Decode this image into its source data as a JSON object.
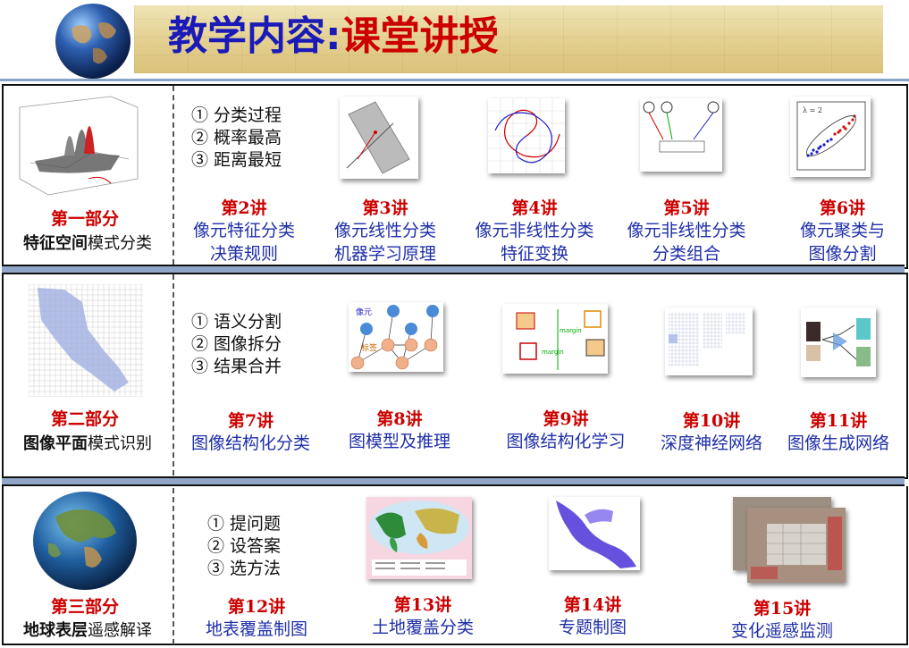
{
  "header": {
    "title_part1": "教学内容:",
    "title_part2": "课堂讲授"
  },
  "sections": [
    {
      "part": "第一部分",
      "sub_bold": "特征空间",
      "sub_rest": "模式分类",
      "points": [
        "① 分类过程",
        "② 概率最高",
        "③ 距离最短"
      ],
      "lectures": [
        {
          "num": "第2讲",
          "lines": [
            "像元特征分类",
            "决策规则"
          ]
        },
        {
          "num": "第3讲",
          "lines": [
            "像元线性分类",
            "机器学习原理"
          ]
        },
        {
          "num": "第4讲",
          "lines": [
            "像元非线性分类",
            "特征变换"
          ]
        },
        {
          "num": "第5讲",
          "lines": [
            "像元非线性分类",
            "分类组合"
          ]
        },
        {
          "num": "第6讲",
          "lines": [
            "像元聚类与",
            "图像分割"
          ]
        }
      ]
    },
    {
      "part": "第二部分",
      "sub_bold": "图像平面",
      "sub_rest": "模式识别",
      "points": [
        "① 语义分割",
        "② 图像拆分",
        "③ 结果合并"
      ],
      "lectures": [
        {
          "num": "第7讲",
          "lines": [
            "图像结构化分类"
          ]
        },
        {
          "num": "第8讲",
          "lines": [
            "图模型及推理"
          ]
        },
        {
          "num": "第9讲",
          "lines": [
            "图像结构化学习"
          ]
        },
        {
          "num": "第10讲",
          "lines": [
            "深度神经网络"
          ]
        },
        {
          "num": "第11讲",
          "lines": [
            "图像生成网络"
          ]
        }
      ]
    },
    {
      "part": "第三部分",
      "sub_bold": "地球表层",
      "sub_rest": "遥感解译",
      "points": [
        "① 提问题",
        "② 设答案",
        "③ 选方法"
      ],
      "lectures": [
        {
          "num": "第12讲",
          "lines": [
            "地表覆盖制图"
          ]
        },
        {
          "num": "第13讲",
          "lines": [
            "土地覆盖分类"
          ]
        },
        {
          "num": "第14讲",
          "lines": [
            "专题制图"
          ]
        },
        {
          "num": "第15讲",
          "lines": [
            "变化遥感监测"
          ]
        }
      ]
    }
  ],
  "thumb_labels": {
    "graph_pixel": "像元",
    "graph_label": "标签",
    "margin1": "margin",
    "margin2": "margin",
    "lambda": "λ = 2"
  }
}
